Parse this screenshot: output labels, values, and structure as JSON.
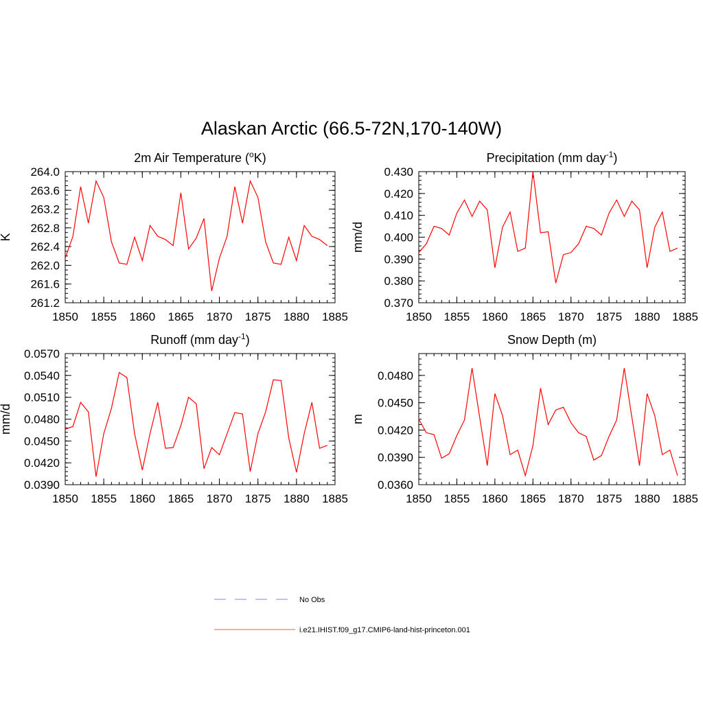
{
  "figure": {
    "title": "Alaskan Arctic (66.5-72N,170-140W)"
  },
  "legend": {
    "entries": [
      {
        "label": "No Obs",
        "color": "#9999ff",
        "dashed": true
      },
      {
        "label": "i.e21.IHIST.f09_g17.CMIP6-land-hist-princeton.001",
        "color": "#ff7777",
        "dashed": false
      }
    ]
  },
  "line_color": "#ff0000",
  "chart_data": [
    {
      "type": "line",
      "title": "2m Air Temperature (",
      "title_sup": "o",
      "title_after": "K)",
      "ylabel": "K",
      "xlim": [
        1850,
        1885
      ],
      "ylim": [
        261.2,
        264.0
      ],
      "yticks": [
        "264.0",
        "263.6",
        "263.2",
        "262.8",
        "262.4",
        "262.0",
        "261.6",
        "261.2"
      ],
      "xticks": [
        "1850",
        "1855",
        "1860",
        "1865",
        "1870",
        "1875",
        "1880",
        "1885"
      ],
      "x": [
        1850,
        1851,
        1852,
        1853,
        1854,
        1855,
        1856,
        1857,
        1858,
        1859,
        1860,
        1861,
        1862,
        1863,
        1864,
        1865,
        1866,
        1867,
        1868,
        1869,
        1870,
        1871,
        1872,
        1873,
        1874,
        1875,
        1876,
        1877,
        1878,
        1879,
        1880,
        1881,
        1882,
        1883,
        1884
      ],
      "values": [
        262.15,
        262.62,
        263.68,
        262.9,
        263.8,
        263.45,
        262.5,
        262.05,
        262.02,
        262.6,
        262.1,
        262.85,
        262.62,
        262.55,
        262.42,
        263.55,
        262.35,
        262.58,
        263.0,
        261.45,
        262.15,
        262.62,
        263.68,
        262.9,
        263.8,
        263.45,
        262.5,
        262.05,
        262.02,
        262.6,
        262.1,
        262.85,
        262.62,
        262.55,
        262.42
      ]
    },
    {
      "type": "line",
      "title": "Precipitation (mm day",
      "title_sup": "-1",
      "title_after": ")",
      "ylabel": "mm/d",
      "xlim": [
        1850,
        1885
      ],
      "ylim": [
        0.37,
        0.43
      ],
      "yticks": [
        "0.430",
        "0.420",
        "0.410",
        "0.400",
        "0.390",
        "0.380",
        "0.370"
      ],
      "xticks": [
        "1850",
        "1855",
        "1860",
        "1865",
        "1870",
        "1875",
        "1880",
        "1885"
      ],
      "x": [
        1850,
        1851,
        1852,
        1853,
        1854,
        1855,
        1856,
        1857,
        1858,
        1859,
        1860,
        1861,
        1862,
        1863,
        1864,
        1865,
        1866,
        1867,
        1868,
        1869,
        1870,
        1871,
        1872,
        1873,
        1874,
        1875,
        1876,
        1877,
        1878,
        1879,
        1880,
        1881,
        1882,
        1883,
        1884
      ],
      "values": [
        0.393,
        0.397,
        0.405,
        0.404,
        0.401,
        0.411,
        0.417,
        0.4095,
        0.4165,
        0.4125,
        0.386,
        0.4045,
        0.4115,
        0.3935,
        0.395,
        0.43,
        0.402,
        0.4025,
        0.379,
        0.392,
        0.393,
        0.397,
        0.405,
        0.404,
        0.401,
        0.411,
        0.417,
        0.4095,
        0.4165,
        0.4125,
        0.386,
        0.4045,
        0.4115,
        0.3935,
        0.395
      ]
    },
    {
      "type": "line",
      "title": "Runoff (mm day",
      "title_sup": "-1",
      "title_after": ")",
      "ylabel": "mm/d",
      "xlim": [
        1850,
        1885
      ],
      "ylim": [
        0.039,
        0.057
      ],
      "yticks": [
        "0.0570",
        "0.0540",
        "0.0510",
        "0.0480",
        "0.0450",
        "0.0420",
        "0.0390"
      ],
      "xticks": [
        "1850",
        "1855",
        "1860",
        "1865",
        "1870",
        "1875",
        "1880",
        "1885"
      ],
      "x": [
        1850,
        1851,
        1852,
        1853,
        1854,
        1855,
        1856,
        1857,
        1858,
        1859,
        1860,
        1861,
        1862,
        1863,
        1864,
        1865,
        1866,
        1867,
        1868,
        1869,
        1870,
        1871,
        1872,
        1873,
        1874,
        1875,
        1876,
        1877,
        1878,
        1879,
        1880,
        1881,
        1882,
        1883,
        1884
      ],
      "values": [
        0.0466,
        0.047,
        0.0503,
        0.049,
        0.0401,
        0.046,
        0.0495,
        0.0544,
        0.0537,
        0.046,
        0.041,
        0.046,
        0.0503,
        0.044,
        0.0441,
        0.0471,
        0.051,
        0.0501,
        0.0412,
        0.0441,
        0.0431,
        0.046,
        0.0489,
        0.0487,
        0.0408,
        0.046,
        0.049,
        0.0534,
        0.0533,
        0.0454,
        0.0407,
        0.046,
        0.0503,
        0.044,
        0.0444
      ]
    },
    {
      "type": "line",
      "title": "Snow Depth (m)",
      "title_sup": "",
      "title_after": "",
      "ylabel": "m",
      "xlim": [
        1850,
        1885
      ],
      "ylim": [
        0.036,
        0.0504
      ],
      "yticks": [
        "0.0480",
        "0.0450",
        "0.0420",
        "0.0390",
        "0.0360"
      ],
      "xticks": [
        "1850",
        "1855",
        "1860",
        "1865",
        "1870",
        "1875",
        "1880",
        "1885"
      ],
      "x": [
        1850,
        1851,
        1852,
        1853,
        1854,
        1855,
        1856,
        1857,
        1858,
        1859,
        1860,
        1861,
        1862,
        1863,
        1864,
        1865,
        1866,
        1867,
        1868,
        1869,
        1870,
        1871,
        1872,
        1873,
        1874,
        1875,
        1876,
        1877,
        1878,
        1879,
        1880,
        1881,
        1882,
        1883,
        1884
      ],
      "values": [
        0.0432,
        0.0417,
        0.0415,
        0.0389,
        0.0394,
        0.0414,
        0.0431,
        0.0488,
        0.0434,
        0.0381,
        0.046,
        0.0436,
        0.0393,
        0.0398,
        0.037,
        0.0403,
        0.0466,
        0.0426,
        0.0442,
        0.0445,
        0.0428,
        0.0417,
        0.0413,
        0.0387,
        0.0392,
        0.0413,
        0.0431,
        0.0488,
        0.0434,
        0.0381,
        0.046,
        0.0436,
        0.0393,
        0.0398,
        0.037
      ]
    }
  ]
}
